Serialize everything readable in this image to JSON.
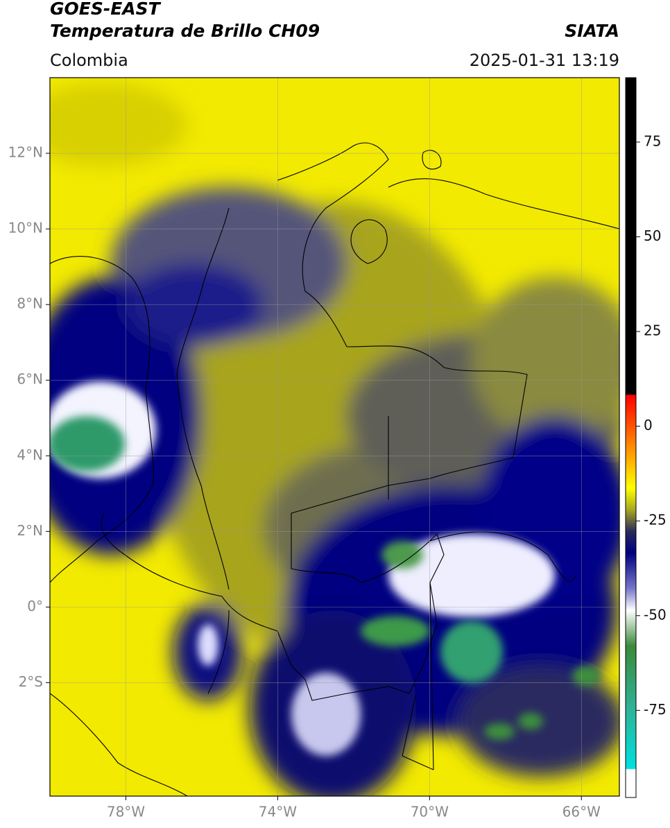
{
  "header": {
    "title": "GOES-EAST",
    "subtitle": "Temperatura de Brillo CH09",
    "region": "Colombia",
    "source": "SIATA",
    "timestamp": "2025-01-31 13:19"
  },
  "map": {
    "xlim": [
      -80,
      -65
    ],
    "ylim": [
      -5,
      14
    ],
    "xticks": [
      {
        "value": -78,
        "label": "78°W"
      },
      {
        "value": -74,
        "label": "74°W"
      },
      {
        "value": -70,
        "label": "70°W"
      },
      {
        "value": -66,
        "label": "66°W"
      }
    ],
    "yticks": [
      {
        "value": 12,
        "label": "12°N"
      },
      {
        "value": 10,
        "label": "10°N"
      },
      {
        "value": 8,
        "label": "8°N"
      },
      {
        "value": 6,
        "label": "6°N"
      },
      {
        "value": 4,
        "label": "4°N"
      },
      {
        "value": 2,
        "label": "2°N"
      },
      {
        "value": 0,
        "label": "0°"
      },
      {
        "value": -2,
        "label": "2°S"
      }
    ],
    "grid": true
  },
  "colorbar": {
    "lim": [
      -98,
      92
    ],
    "ticks": [
      75,
      50,
      25,
      0,
      -25,
      -50,
      -75
    ]
  }
}
